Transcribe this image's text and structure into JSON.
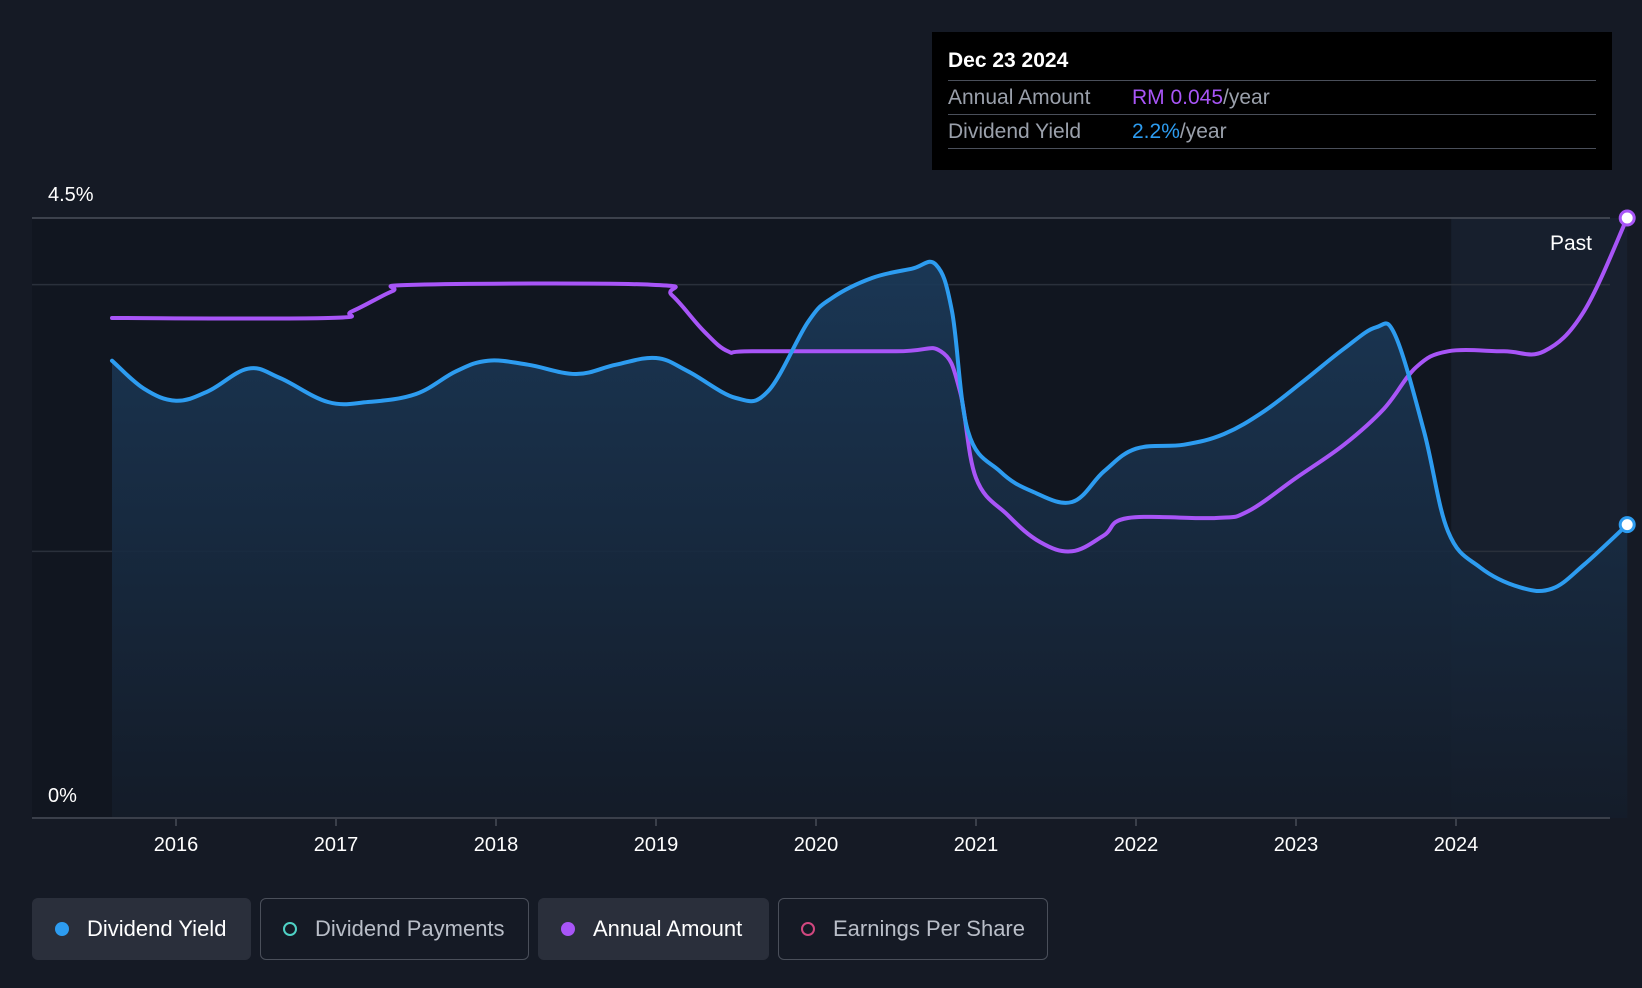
{
  "tooltip": {
    "date": "Dec 23 2024",
    "rows": [
      {
        "label": "Annual Amount",
        "value": "RM 0.045",
        "unit": "/year"
      },
      {
        "label": "Dividend Yield",
        "value": "2.2%",
        "unit": "/year"
      }
    ]
  },
  "legend": {
    "items": [
      {
        "label": "Dividend Yield",
        "color": "#2d9cf0",
        "active": true,
        "filled": true
      },
      {
        "label": "Dividend Payments",
        "color": "#4fd1c5",
        "active": false,
        "filled": false
      },
      {
        "label": "Annual Amount",
        "color": "#a855f7",
        "active": true,
        "filled": true
      },
      {
        "label": "Earnings Per Share",
        "color": "#d1477f",
        "active": false,
        "filled": false
      }
    ]
  },
  "chart_data": {
    "type": "line",
    "y_axis": {
      "top_label": "4.5%",
      "bottom_label": "0%",
      "ylim": [
        0,
        4.5
      ],
      "gridlines": [
        4.0,
        2.0
      ]
    },
    "x_axis": {
      "ticks": [
        "2016",
        "2017",
        "2018",
        "2019",
        "2020",
        "2021",
        "2022",
        "2023",
        "2024"
      ],
      "xlim": [
        2015.6,
        2025.07
      ]
    },
    "past_label": "Past",
    "past_region_start": 2023.97,
    "colors": {
      "dividend_yield": "#2d9cf0",
      "annual_amount": "#a855f7",
      "area_top": "#1b3a5a",
      "area_bottom": "#152233"
    },
    "series": [
      {
        "name": "Dividend Yield",
        "color": "#2d9cf0",
        "points": [
          [
            2015.6,
            3.43
          ],
          [
            2015.8,
            3.22
          ],
          [
            2016.0,
            3.13
          ],
          [
            2016.2,
            3.2
          ],
          [
            2016.45,
            3.37
          ],
          [
            2016.65,
            3.3
          ],
          [
            2016.95,
            3.12
          ],
          [
            2017.2,
            3.12
          ],
          [
            2017.5,
            3.18
          ],
          [
            2017.75,
            3.35
          ],
          [
            2017.95,
            3.43
          ],
          [
            2018.2,
            3.4
          ],
          [
            2018.5,
            3.33
          ],
          [
            2018.75,
            3.4
          ],
          [
            2019.0,
            3.45
          ],
          [
            2019.2,
            3.35
          ],
          [
            2019.5,
            3.15
          ],
          [
            2019.7,
            3.2
          ],
          [
            2019.95,
            3.72
          ],
          [
            2020.1,
            3.9
          ],
          [
            2020.35,
            4.05
          ],
          [
            2020.6,
            4.12
          ],
          [
            2020.75,
            4.15
          ],
          [
            2020.85,
            3.8
          ],
          [
            2020.95,
            2.9
          ],
          [
            2021.15,
            2.6
          ],
          [
            2021.35,
            2.45
          ],
          [
            2021.6,
            2.37
          ],
          [
            2021.8,
            2.6
          ],
          [
            2022.0,
            2.77
          ],
          [
            2022.3,
            2.8
          ],
          [
            2022.55,
            2.88
          ],
          [
            2022.8,
            3.05
          ],
          [
            2023.05,
            3.28
          ],
          [
            2023.3,
            3.52
          ],
          [
            2023.5,
            3.68
          ],
          [
            2023.62,
            3.62
          ],
          [
            2023.8,
            2.9
          ],
          [
            2023.95,
            2.15
          ],
          [
            2024.15,
            1.88
          ],
          [
            2024.4,
            1.73
          ],
          [
            2024.6,
            1.72
          ],
          [
            2024.8,
            1.9
          ],
          [
            2025.07,
            2.2
          ]
        ]
      },
      {
        "name": "Annual Amount",
        "color": "#a855f7",
        "points": [
          [
            2015.6,
            3.75
          ],
          [
            2016.95,
            3.75
          ],
          [
            2017.1,
            3.8
          ],
          [
            2017.35,
            3.95
          ],
          [
            2017.5,
            4.0
          ],
          [
            2018.97,
            4.0
          ],
          [
            2019.1,
            3.92
          ],
          [
            2019.3,
            3.65
          ],
          [
            2019.45,
            3.5
          ],
          [
            2019.6,
            3.5
          ],
          [
            2020.5,
            3.5
          ],
          [
            2020.78,
            3.5
          ],
          [
            2020.9,
            3.2
          ],
          [
            2021.0,
            2.55
          ],
          [
            2021.2,
            2.27
          ],
          [
            2021.4,
            2.07
          ],
          [
            2021.6,
            2.0
          ],
          [
            2021.8,
            2.12
          ],
          [
            2021.95,
            2.25
          ],
          [
            2022.5,
            2.25
          ],
          [
            2022.7,
            2.3
          ],
          [
            2023.0,
            2.55
          ],
          [
            2023.3,
            2.8
          ],
          [
            2023.55,
            3.07
          ],
          [
            2023.75,
            3.38
          ],
          [
            2023.95,
            3.5
          ],
          [
            2024.3,
            3.5
          ],
          [
            2024.55,
            3.5
          ],
          [
            2024.8,
            3.8
          ],
          [
            2025.07,
            4.5
          ]
        ]
      }
    ]
  }
}
